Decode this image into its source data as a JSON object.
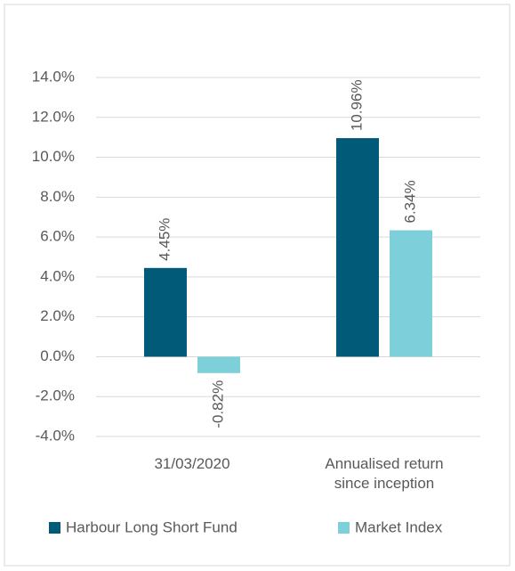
{
  "chart_data": {
    "type": "bar",
    "categories": [
      "31/03/2020",
      "Annualised return since inception"
    ],
    "series": [
      {
        "name": "Harbour Long Short Fund",
        "color": "#005a78",
        "values": [
          4.45,
          10.96
        ],
        "value_labels": [
          "4.45%",
          "10.96%"
        ]
      },
      {
        "name": "Market Index",
        "color": "#7dd0d9",
        "values": [
          -0.82,
          6.34
        ],
        "value_labels": [
          "-0.82%",
          "6.34%"
        ]
      }
    ],
    "ylim": [
      -4,
      14
    ],
    "yticks": [
      {
        "value": -4,
        "label": "-4.0%"
      },
      {
        "value": -2,
        "label": "-2.0%"
      },
      {
        "value": 0,
        "label": "0.0%"
      },
      {
        "value": 2,
        "label": "2.0%"
      },
      {
        "value": 4,
        "label": "4.0%"
      },
      {
        "value": 6,
        "label": "6.0%"
      },
      {
        "value": 8,
        "label": "8.0%"
      },
      {
        "value": 10,
        "label": "10.0%"
      },
      {
        "value": 12,
        "label": "12.0%"
      },
      {
        "value": 14,
        "label": "14.0%"
      }
    ],
    "grid": true,
    "legend": "bottom"
  }
}
